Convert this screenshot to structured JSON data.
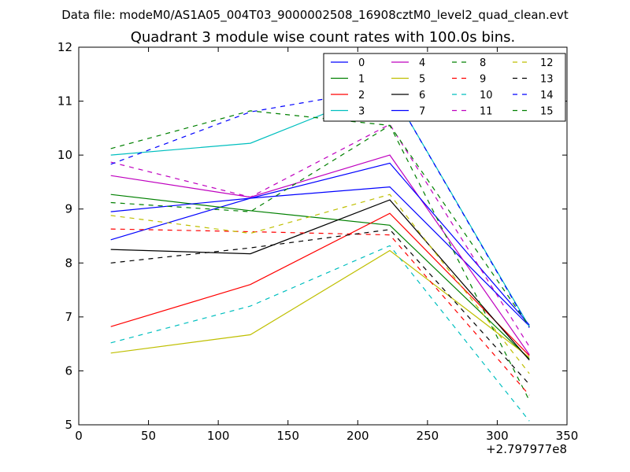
{
  "suptitle": "Data file: modeM0/AS1A05_004T03_9000002508_16908cztM0_level2_quad_clean.evt",
  "chart_data": {
    "type": "line",
    "title": "Quadrant 3 module wise count rates with 100.0s bins.",
    "xlabel": "",
    "ylabel": "",
    "x_offset_label": "+2.797977e8",
    "xlim": [
      0,
      350
    ],
    "ylim": [
      5,
      12
    ],
    "xticks": [
      0,
      50,
      100,
      150,
      200,
      250,
      300,
      350
    ],
    "yticks": [
      5,
      6,
      7,
      8,
      9,
      10,
      11,
      12
    ],
    "grid": false,
    "legend": {
      "location": "upper-right",
      "columns": 4
    },
    "x": [
      23,
      123,
      223,
      323
    ],
    "series": [
      {
        "name": "0",
        "color": "#0000ff",
        "style": "solid",
        "values": [
          8.43,
          9.2,
          9.41,
          6.83
        ]
      },
      {
        "name": "1",
        "color": "#008000",
        "style": "solid",
        "values": [
          9.27,
          8.97,
          8.7,
          6.22
        ]
      },
      {
        "name": "2",
        "color": "#ff0000",
        "style": "solid",
        "values": [
          6.82,
          7.6,
          8.92,
          6.28
        ]
      },
      {
        "name": "3",
        "color": "#00bfbf",
        "style": "solid",
        "values": [
          10.0,
          10.22,
          11.25,
          6.82
        ]
      },
      {
        "name": "4",
        "color": "#bf00bf",
        "style": "solid",
        "values": [
          9.62,
          9.22,
          10.0,
          6.3
        ]
      },
      {
        "name": "5",
        "color": "#bfbf00",
        "style": "solid",
        "values": [
          6.33,
          6.67,
          8.23,
          6.25
        ]
      },
      {
        "name": "6",
        "color": "#000000",
        "style": "solid",
        "values": [
          8.25,
          8.17,
          9.17,
          6.2
        ]
      },
      {
        "name": "7",
        "color": "#0000ff",
        "style": "solid",
        "values": [
          8.95,
          9.2,
          9.85,
          6.85
        ]
      },
      {
        "name": "8",
        "color": "#008000",
        "style": "dashed",
        "values": [
          9.12,
          8.95,
          10.55,
          5.45
        ]
      },
      {
        "name": "9",
        "color": "#ff0000",
        "style": "dashed",
        "values": [
          8.63,
          8.58,
          8.52,
          5.55
        ]
      },
      {
        "name": "10",
        "color": "#00bfbf",
        "style": "dashed",
        "values": [
          6.52,
          7.2,
          8.32,
          5.07
        ]
      },
      {
        "name": "11",
        "color": "#bf00bf",
        "style": "dashed",
        "values": [
          9.87,
          9.22,
          10.57,
          6.45
        ]
      },
      {
        "name": "12",
        "color": "#bfbf00",
        "style": "dashed",
        "values": [
          8.88,
          8.55,
          9.27,
          5.95
        ]
      },
      {
        "name": "13",
        "color": "#000000",
        "style": "dashed",
        "values": [
          8.0,
          8.28,
          8.62,
          5.75
        ]
      },
      {
        "name": "14",
        "color": "#0000ff",
        "style": "dashed",
        "values": [
          9.83,
          10.8,
          11.25,
          6.8
        ]
      },
      {
        "name": "15",
        "color": "#008000",
        "style": "dashed",
        "values": [
          10.12,
          10.82,
          10.55,
          6.82
        ]
      }
    ]
  }
}
